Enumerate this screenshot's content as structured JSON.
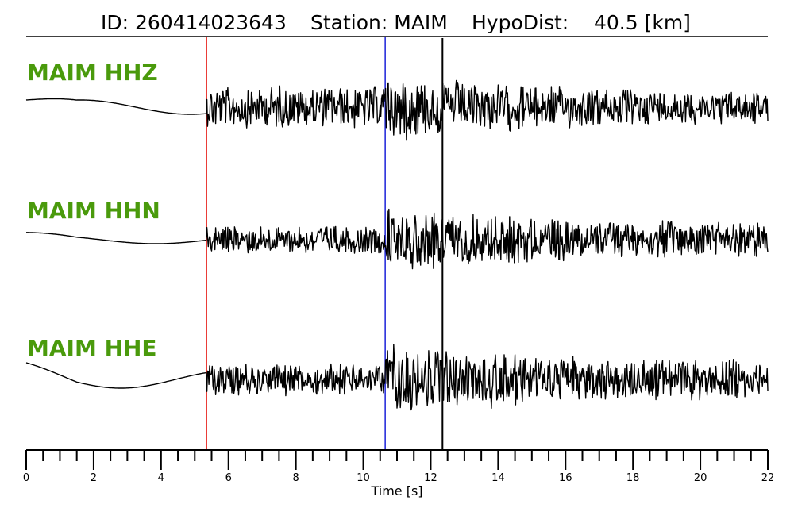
{
  "chart_data": {
    "type": "line",
    "title": {
      "id": "ID: 260414023643",
      "station": "Station: MAIM",
      "hypodist": "HypoDist:    40.5 [km]"
    },
    "xlabel": "Time [s]",
    "xlim": [
      0,
      22
    ],
    "x_tick_labels": [
      "0",
      "2",
      "4",
      "6",
      "8",
      "10",
      "12",
      "14",
      "16",
      "18",
      "20",
      "22"
    ],
    "label_color": "#4a9a0c",
    "trace_color": "#000000",
    "picks": [
      {
        "time": 5.35,
        "color": "#e8231d"
      },
      {
        "time": 10.65,
        "color": "#1b22d9"
      },
      {
        "time": 12.35,
        "color": "#000000"
      }
    ],
    "series": [
      {
        "name": "MAIM HHZ",
        "pre_amp": 9,
        "p_amp": 24,
        "s_amp": 42,
        "coda_amp": 20
      },
      {
        "name": "MAIM HHN",
        "pre_amp": 5,
        "p_amp": 16,
        "s_amp": 40,
        "coda_amp": 22
      },
      {
        "name": "MAIM HHE",
        "pre_amp": 11,
        "p_amp": 18,
        "s_amp": 44,
        "coda_amp": 24
      }
    ]
  }
}
